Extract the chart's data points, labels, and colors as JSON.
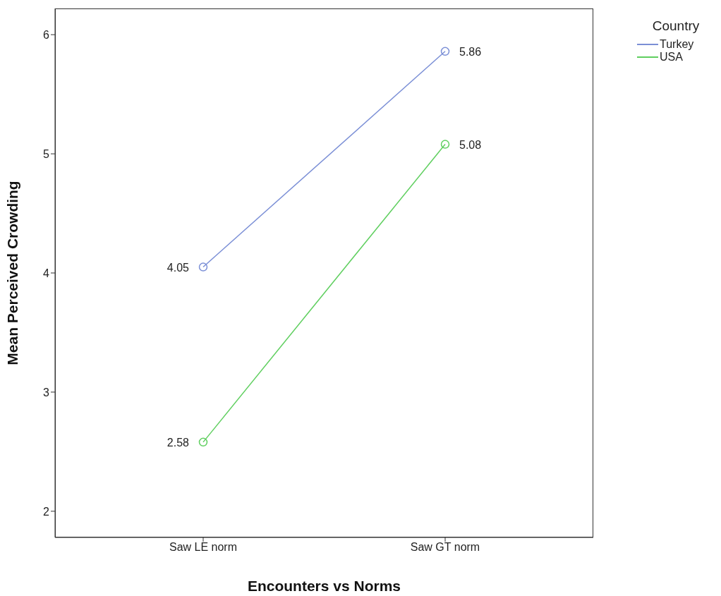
{
  "chart_data": {
    "type": "line",
    "xlabel": "Encounters vs Norms",
    "ylabel": "Mean Perceived Crowding",
    "categories": [
      "Saw LE norm",
      "Saw GT norm"
    ],
    "series": [
      {
        "name": "Turkey",
        "color": "#7b8fd6",
        "values": [
          4.05,
          5.86
        ]
      },
      {
        "name": "USA",
        "color": "#5fcf5f",
        "values": [
          2.58,
          5.08
        ]
      }
    ],
    "ylim": [
      1.78,
      6.22
    ],
    "yticks": [
      2,
      3,
      4,
      5,
      6
    ],
    "legend": "top right",
    "legend_title": "Country",
    "data_labels": true,
    "marker": "circle",
    "line_style": "solid"
  }
}
